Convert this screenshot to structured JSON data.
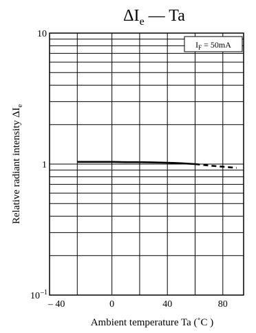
{
  "chart_data": {
    "type": "line",
    "title": {
      "main": "ΔI",
      "sub": "e",
      "rest": " — Ta"
    },
    "xlabel": "Ambient temperature    Ta (˚C )",
    "ylabel": {
      "main": "Relative radiant intensity    ΔI",
      "sub": "e"
    },
    "xlim": [
      -45,
      95
    ],
    "ylim": [
      0.1,
      10
    ],
    "yscale": "log",
    "grid": true,
    "x_ticks": [
      {
        "value": -40,
        "label": "– 40"
      },
      {
        "value": 0,
        "label": "0"
      },
      {
        "value": 40,
        "label": "40"
      },
      {
        "value": 80,
        "label": "80"
      }
    ],
    "y_ticks": [
      {
        "value": 0.1,
        "label": "10",
        "sup": "–1"
      },
      {
        "value": 1,
        "label": "1",
        "sup": ""
      },
      {
        "value": 10,
        "label": "10",
        "sup": ""
      }
    ],
    "x_grid": [
      -25,
      0,
      20,
      40,
      60,
      80
    ],
    "y_grid": [
      0.1,
      0.2,
      0.3,
      0.4,
      0.5,
      0.6,
      0.7,
      0.8,
      0.9,
      1,
      2,
      3,
      4,
      5,
      6,
      7,
      8,
      9,
      10
    ],
    "legend": {
      "main": "I",
      "sub": "F",
      "rest": " = 50mA",
      "placement": "top-right"
    },
    "series": [
      {
        "style": "solid",
        "x": [
          -25,
          -10,
          0,
          10,
          20,
          30,
          40,
          50,
          60
        ],
        "y": [
          1.04,
          1.04,
          1.04,
          1.035,
          1.035,
          1.03,
          1.025,
          1.015,
          1.0
        ]
      },
      {
        "style": "dashed",
        "x": [
          60,
          70,
          80,
          90
        ],
        "y": [
          1.0,
          0.975,
          0.955,
          0.935
        ]
      }
    ]
  }
}
